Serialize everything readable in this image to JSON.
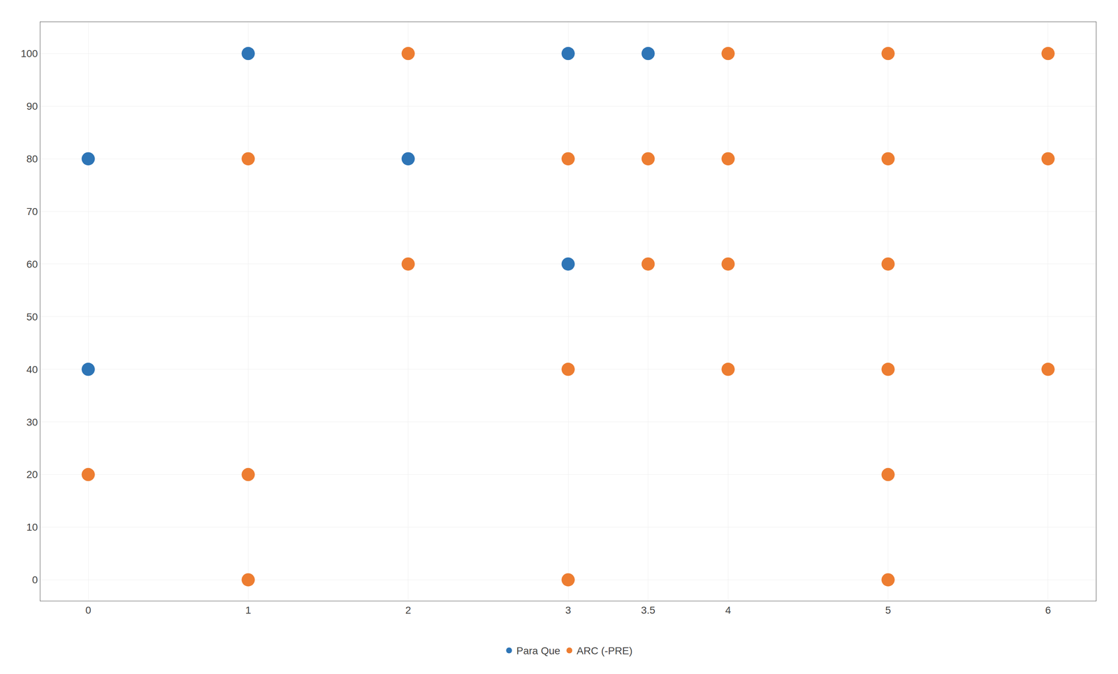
{
  "chart_data": {
    "type": "scatter",
    "series": [
      {
        "name": "Para Que",
        "color": "#2e75b6",
        "x": [
          0,
          0,
          1,
          2,
          3,
          3,
          3.5
        ],
        "values": [
          80,
          40,
          100,
          80,
          100,
          60,
          100
        ]
      },
      {
        "name": "ARC (-PRE)",
        "color": "#ed7d31",
        "x": [
          0,
          1,
          1,
          1,
          2,
          2,
          3,
          3,
          3,
          3.5,
          3.5,
          4,
          4,
          4,
          4,
          5,
          5,
          5,
          5,
          5,
          5,
          6,
          6,
          6
        ],
        "values": [
          20,
          80,
          20,
          0,
          100,
          60,
          80,
          40,
          0,
          80,
          60,
          100,
          80,
          60,
          40,
          100,
          80,
          60,
          40,
          20,
          0,
          100,
          80,
          40
        ]
      }
    ],
    "xlim": [
      -0.3,
      6.3
    ],
    "ylim": [
      -4,
      106
    ],
    "xticks": [
      0,
      1,
      2,
      3,
      3.5,
      4,
      5,
      6
    ],
    "yticks": [
      0,
      10,
      20,
      30,
      40,
      50,
      60,
      70,
      80,
      90,
      100
    ],
    "grid": true,
    "legend": "bottom",
    "marker": "circle"
  }
}
